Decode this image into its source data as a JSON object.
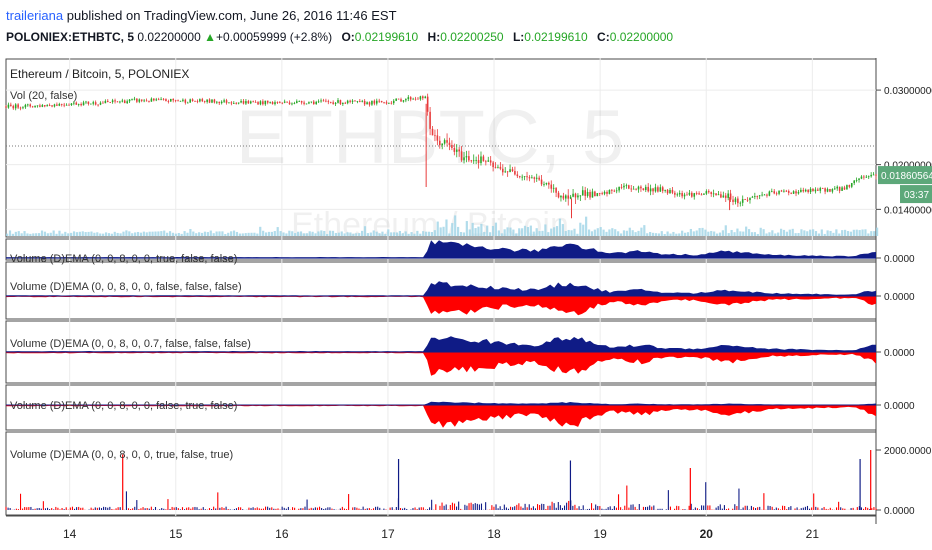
{
  "header": {
    "author": "traileriana",
    "published_text": "published on TradingView.com, June 26, 2016 11:46 EST",
    "symbol": "POLONIEX:ETHBTC, 5",
    "last": "0.02200000",
    "change": "+0.00059999 (+2.8%)",
    "o_label": "O:",
    "open": "0.02199610",
    "h_label": "H:",
    "high": "0.02200250",
    "l_label": "L:",
    "low": "0.02199610",
    "c_label": "C:",
    "close": "0.02200000"
  },
  "chart_data": {
    "type": "line",
    "title": "Ethereum / Bitcoin, 5, POLONIEX",
    "watermark_symbol": "ETHBTC, 5",
    "watermark_name": "Ethereum / Bitcoin",
    "x_ticks": [
      "14",
      "15",
      "16",
      "17",
      "18",
      "19",
      "20",
      "21"
    ],
    "x_range": [
      13.4,
      21.6
    ],
    "price": {
      "y_ticks": [
        "0.03000000",
        "0.02000000",
        "0.01400000"
      ],
      "y_tick_values": [
        0.03,
        0.02,
        0.014
      ],
      "ylim": [
        0.0115,
        0.0335
      ],
      "last_price_label": "0.01860564",
      "last_price_value": 0.0186,
      "time_label": "03:37",
      "dotted_level": 0.0225,
      "x": [
        13.4,
        13.7,
        14.0,
        14.3,
        14.6,
        14.9,
        15.0,
        15.3,
        15.6,
        15.9,
        16.2,
        16.5,
        16.8,
        17.0,
        17.2,
        17.35,
        17.4,
        17.45,
        17.55,
        17.7,
        17.9,
        18.0,
        18.2,
        18.4,
        18.6,
        18.7,
        18.8,
        18.9,
        19.0,
        19.2,
        19.4,
        19.6,
        19.8,
        20.0,
        20.2,
        20.3,
        20.5,
        20.7,
        20.9,
        21.1,
        21.3,
        21.45,
        21.6
      ],
      "y": [
        0.0278,
        0.0279,
        0.0282,
        0.0283,
        0.0286,
        0.0286,
        0.0286,
        0.0285,
        0.0284,
        0.0283,
        0.0284,
        0.0284,
        0.0283,
        0.0284,
        0.0289,
        0.029,
        0.0248,
        0.0232,
        0.0228,
        0.021,
        0.0206,
        0.0196,
        0.0189,
        0.0181,
        0.0162,
        0.015,
        0.0165,
        0.016,
        0.0158,
        0.017,
        0.0168,
        0.0166,
        0.016,
        0.0161,
        0.0158,
        0.015,
        0.0159,
        0.0163,
        0.0164,
        0.0166,
        0.0168,
        0.0183,
        0.0187
      ]
    },
    "panels": [
      {
        "label": "Vol (20, false)",
        "type": "volume"
      },
      {
        "label": "Volume (D)EMA (0, 0, 8, 0, 0, true, false, false)",
        "type": "positive_area",
        "y_ticks": [
          "0.0000"
        ]
      },
      {
        "label": "Volume (D)EMA (0, 0, 8, 0, 0, false, false, false)",
        "type": "mirror_area",
        "y_ticks": [
          "0.0000"
        ]
      },
      {
        "label": "Volume (D)EMA (0, 0, 8, 0, 0.7, false, false, false)",
        "type": "mirror_area",
        "y_ticks": [
          "0.0000"
        ]
      },
      {
        "label": "Volume (D)EMA (0, 0, 8, 0, 0, false, true, false)",
        "type": "mirror_area_small_up",
        "y_ticks": [
          "0.0000"
        ]
      },
      {
        "label": "Volume (D)EMA (0, 0, 8, 0, 0, true, false, true)",
        "type": "spikes",
        "y_ticks": [
          "2000.0000",
          "0.0000"
        ],
        "ylim": [
          0,
          2400
        ]
      }
    ],
    "colors": {
      "up": "#26a626",
      "down": "#e83b3b",
      "navy": "#0f1b86",
      "red": "#ff0000",
      "volume": "#9ed3e6",
      "label_box": "#5da87a"
    }
  }
}
